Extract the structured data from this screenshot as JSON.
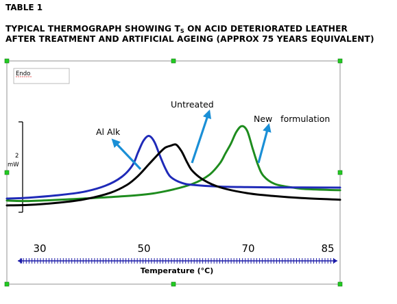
{
  "header": {
    "table_label": "TABLE 1",
    "title_line1_a": "TYPICAL THERMOGRAPH SHOWING T",
    "title_line1_sub": "S",
    "title_line1_b": " ON ACID DETERIORATED LEATHER",
    "title_line2": "AFTER TREATMENT AND ARTIFICIAL AGEING (APPROX 75 YEARS EQUIVALENT)"
  },
  "colors": {
    "blue": "#1f2ab8",
    "black": "#000000",
    "green": "#1e8c1e",
    "arrow": "#1a8fd6",
    "axis": "#1c1ca8",
    "handle": "#22cc22"
  },
  "chart_data": {
    "type": "line",
    "xlabel": "Temperature (°C)",
    "ylabel_value": "2",
    "ylabel_unit": "mW",
    "legend_box_label": "Endo",
    "x_ticks": [
      30,
      50,
      70,
      85
    ],
    "xlim": [
      26,
      87
    ],
    "series": [
      {
        "name": "Al Alk",
        "color": "#1f2ab8",
        "x": [
          26,
          30,
          35,
          40,
          44,
          47,
          49,
          50,
          51,
          52,
          53,
          54,
          55,
          56,
          58,
          60,
          65,
          70,
          75,
          80,
          87
        ],
        "y": [
          0.7,
          0.79,
          1.02,
          1.38,
          2.0,
          2.9,
          4.1,
          5.4,
          6.6,
          7.1,
          6.5,
          5.1,
          3.8,
          2.9,
          2.3,
          2.1,
          1.92,
          1.87,
          1.84,
          1.83,
          1.82
        ]
      },
      {
        "name": "Untreated",
        "color": "#000000",
        "x": [
          26,
          30,
          35,
          40,
          45,
          48,
          50,
          52,
          54,
          55,
          56,
          57,
          58,
          59,
          60,
          62,
          65,
          70,
          75,
          80,
          87
        ],
        "y": [
          0.0,
          0.05,
          0.25,
          0.6,
          1.3,
          2.1,
          3.0,
          4.2,
          5.4,
          5.9,
          6.1,
          6.2,
          5.5,
          4.4,
          3.5,
          2.6,
          1.85,
          1.25,
          0.95,
          0.75,
          0.58
        ]
      },
      {
        "name": "New formulation",
        "color": "#1e8c1e",
        "x": [
          26,
          30,
          40,
          50,
          55,
          60,
          63,
          65,
          66,
          67,
          68,
          69,
          70,
          71,
          72,
          73,
          75,
          78,
          80,
          84,
          87
        ],
        "y": [
          0.5,
          0.45,
          0.7,
          1.05,
          1.45,
          2.2,
          3.1,
          4.3,
          5.3,
          6.3,
          7.5,
          8.1,
          7.6,
          5.8,
          4.1,
          3.0,
          2.2,
          1.85,
          1.7,
          1.6,
          1.55
        ]
      }
    ],
    "annotations": [
      {
        "label": "Al Alk"
      },
      {
        "label": "Untreated"
      },
      {
        "label": "New   formulation"
      }
    ]
  }
}
